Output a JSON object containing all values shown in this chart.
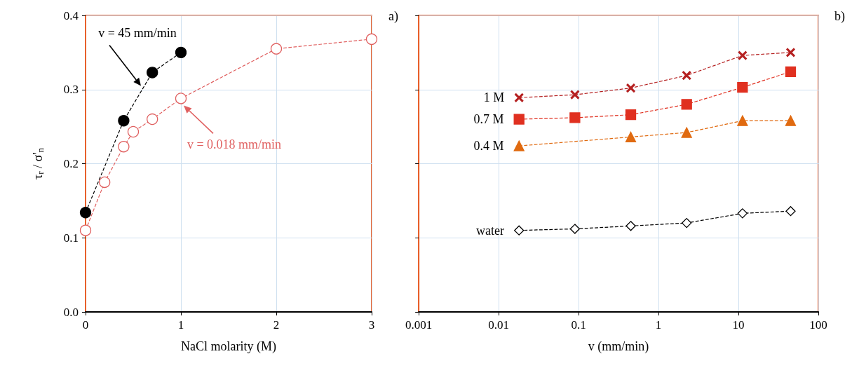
{
  "chart_data": [
    {
      "type": "line",
      "xlabel": "NaCl molarity (M)",
      "ylabel": "τ$_{r}$ / σ'$_{n}$",
      "xlim": [
        0,
        3
      ],
      "xticks": [
        0,
        1,
        2,
        3
      ],
      "ylim": [
        0,
        0.4
      ],
      "yticks": [
        {
          "value": 0,
          "label": "0.0"
        },
        0.1,
        0.2,
        0.3,
        0.4
      ],
      "grid": true,
      "legend": false,
      "line_style": "dashed",
      "marker": "circle",
      "annotations": [
        "a)",
        "v = 45 mm/min",
        "v = 0.018 mm/min"
      ],
      "series": [
        {
          "color": "#000000",
          "x": [
            0,
            0.4,
            0.7,
            1
          ],
          "values": [
            0.134,
            0.258,
            0.323,
            0.35
          ]
        },
        {
          "color": "#e06060",
          "x": [
            0,
            0.2,
            0.4,
            0.5,
            0.7,
            1,
            2,
            3
          ],
          "values": [
            0.11,
            0.175,
            0.223,
            0.243,
            0.26,
            0.288,
            0.355,
            0.368
          ]
        }
      ]
    },
    {
      "type": "line",
      "xlabel": "v (mm/min)",
      "log": "x",
      "xlim": [
        0.001,
        100
      ],
      "xticks": [
        0.001,
        0.01,
        0.1,
        1,
        10,
        100
      ],
      "ylim": [
        0,
        0.4
      ],
      "yticks": [
        0,
        0.1,
        0.2,
        0.3,
        0.4
      ],
      "tick_labels": "x",
      "grid": true,
      "legend": false,
      "line_style": "dashed",
      "annotations": [
        "b)"
      ],
      "x": [
        0.018,
        0.09,
        0.45,
        2.25,
        11.25,
        45
      ],
      "series": [
        {
          "name": "1 M",
          "color": "#b52020",
          "marker": "cross",
          "values": [
            0.289,
            0.293,
            0.302,
            0.319,
            0.346,
            0.35
          ]
        },
        {
          "name": "0.7 M",
          "color": "#e03020",
          "marker": "square",
          "values": [
            0.26,
            0.262,
            0.266,
            0.28,
            0.303,
            0.324
          ]
        },
        {
          "name": "0.4 M",
          "color": "#e06a10",
          "marker": "triangle",
          "values": [
            0.224,
            null,
            0.236,
            0.242,
            0.258,
            0.258
          ]
        },
        {
          "name": "water",
          "color": "#000000",
          "marker": "diamond",
          "values": [
            0.11,
            0.112,
            0.116,
            0.12,
            0.133,
            0.136
          ]
        }
      ]
    }
  ]
}
